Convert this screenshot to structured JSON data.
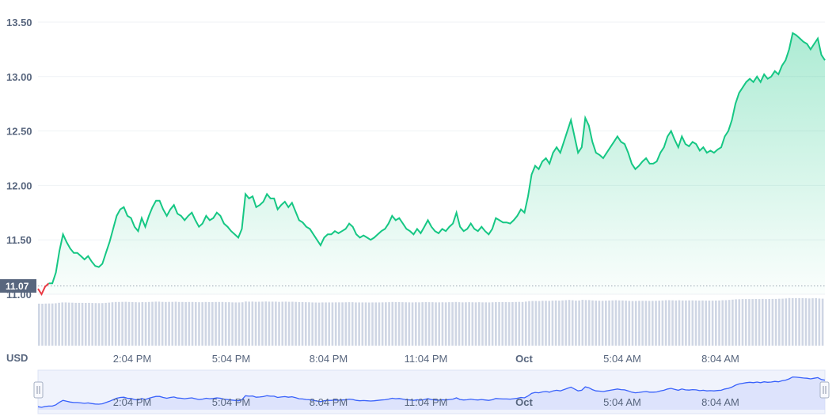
{
  "chart_data": {
    "type": "area",
    "currency": "USD",
    "y_ticks": [
      "13.50",
      "13.00",
      "12.50",
      "12.00",
      "11.50",
      "11.00"
    ],
    "ylim": [
      11.0,
      13.5
    ],
    "x_ticks": [
      "2:04 PM",
      "5:04 PM",
      "8:04 PM",
      "11:04 PM",
      "Oct",
      "5:04 AM",
      "8:04 AM"
    ],
    "reference_price": "11.07",
    "grid": true,
    "colors": {
      "up": "#16c784",
      "down": "#ea3943",
      "volume": "#cfd6e4",
      "navigator_line": "#3861fb"
    },
    "series": [
      {
        "values": [
          11.05,
          11.0,
          11.07,
          11.1,
          11.1,
          11.2,
          11.4,
          11.55,
          11.48,
          11.42,
          11.38,
          11.38,
          11.35,
          11.32,
          11.35,
          11.3,
          11.26,
          11.25,
          11.28,
          11.38,
          11.48,
          11.6,
          11.72,
          11.78,
          11.8,
          11.72,
          11.7,
          11.62,
          11.58,
          11.7,
          11.62,
          11.72,
          11.8,
          11.86,
          11.86,
          11.78,
          11.72,
          11.78,
          11.82,
          11.74,
          11.72,
          11.68,
          11.72,
          11.75,
          11.68,
          11.62,
          11.65,
          11.72,
          11.68,
          11.7,
          11.75,
          11.72,
          11.65,
          11.62,
          11.58,
          11.55,
          11.52,
          11.6,
          11.92,
          11.88,
          11.9,
          11.8,
          11.82,
          11.85,
          11.92,
          11.88,
          11.88,
          11.78,
          11.82,
          11.85,
          11.8,
          11.84,
          11.76,
          11.68,
          11.66,
          11.62,
          11.6,
          11.55,
          11.5,
          11.45,
          11.52,
          11.55,
          11.55,
          11.58,
          11.56,
          11.58,
          11.6,
          11.65,
          11.62,
          11.55,
          11.52,
          11.54,
          11.52,
          11.5,
          11.52,
          11.55,
          11.58,
          11.6,
          11.65,
          11.72,
          11.68,
          11.7,
          11.65,
          11.6,
          11.58,
          11.55,
          11.6,
          11.56,
          11.62,
          11.68,
          11.62,
          11.58,
          11.56,
          11.6,
          11.58,
          11.62,
          11.65,
          11.75,
          11.62,
          11.58,
          11.6,
          11.65,
          11.6,
          11.58,
          11.62,
          11.58,
          11.55,
          11.6,
          11.7,
          11.68,
          11.66,
          11.66,
          11.65,
          11.68,
          11.72,
          11.78,
          11.75,
          11.9,
          12.1,
          12.18,
          12.15,
          12.22,
          12.25,
          12.2,
          12.3,
          12.35,
          12.3,
          12.4,
          12.5,
          12.6,
          12.45,
          12.3,
          12.35,
          12.62,
          12.55,
          12.4,
          12.3,
          12.28,
          12.25,
          12.3,
          12.35,
          12.4,
          12.45,
          12.4,
          12.38,
          12.3,
          12.2,
          12.15,
          12.18,
          12.22,
          12.25,
          12.2,
          12.2,
          12.22,
          12.3,
          12.35,
          12.45,
          12.5,
          12.42,
          12.35,
          12.45,
          12.38,
          12.36,
          12.4,
          12.38,
          12.32,
          12.35,
          12.3,
          12.32,
          12.3,
          12.33,
          12.35,
          12.45,
          12.5,
          12.6,
          12.75,
          12.85,
          12.9,
          12.95,
          12.98,
          12.95,
          13.0,
          12.95,
          13.02,
          12.98,
          13.0,
          13.05,
          13.02,
          13.1,
          13.15,
          13.25,
          13.4,
          13.38,
          13.35,
          13.32,
          13.3,
          13.25,
          13.3,
          13.35,
          13.2,
          13.15
        ]
      }
    ]
  }
}
